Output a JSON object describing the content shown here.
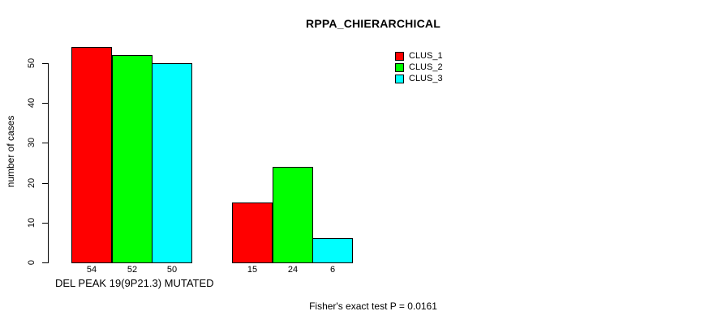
{
  "window": {
    "background": "#ffffff",
    "text_color": "#000000"
  },
  "chart_data": {
    "type": "bar",
    "title": "RPPA_CHIERARCHICAL",
    "ylabel": "number of cases",
    "xlabel": "DEL PEAK 19(9P21.3) MUTATED",
    "ylim": [
      0,
      55
    ],
    "yticks": [
      0,
      10,
      20,
      30,
      40,
      50
    ],
    "grid": false,
    "legend_position": "top-right",
    "groups": 2,
    "series": [
      {
        "name": "CLUS_1",
        "color": "#ff0000",
        "values": [
          54,
          15
        ]
      },
      {
        "name": "CLUS_2",
        "color": "#00ff00",
        "values": [
          52,
          24
        ]
      },
      {
        "name": "CLUS_3",
        "color": "#00ffff",
        "values": [
          50,
          6
        ]
      }
    ],
    "bar_value_labels_shown": true,
    "annotation": "Fisher's exact test P = 0.0161"
  }
}
